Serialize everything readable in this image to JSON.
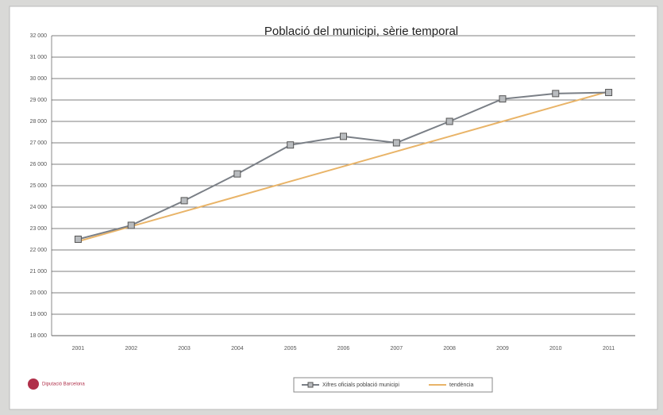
{
  "chart_data": {
    "type": "line",
    "title": "Població del municipi, sèrie temporal",
    "categories": [
      "2001",
      "2002",
      "2003",
      "2004",
      "2005",
      "2006",
      "2007",
      "2008",
      "2009",
      "2010",
      "2011"
    ],
    "series": [
      {
        "name": "Xifres oficials població municipi",
        "color": "#7a7f86",
        "marker": "square",
        "values": [
          22500,
          23150,
          24300,
          25550,
          26900,
          27300,
          27000,
          28000,
          29050,
          29300,
          29350
        ]
      },
      {
        "name": "tendència",
        "color": "#e9b468",
        "marker": "none",
        "values": [
          22400,
          23100,
          23800,
          24500,
          25200,
          25900,
          26600,
          27300,
          28000,
          28700,
          29400
        ]
      }
    ],
    "ylim": [
      18000,
      32000
    ],
    "yticks": [
      {
        "value": 18000,
        "label": "18 000"
      },
      {
        "value": 19000,
        "label": "19 000"
      },
      {
        "value": 20000,
        "label": "20 000"
      },
      {
        "value": 21000,
        "label": "21 000"
      },
      {
        "value": 22000,
        "label": "22 000"
      },
      {
        "value": 23000,
        "label": "23 000"
      },
      {
        "value": 24000,
        "label": "24 000"
      },
      {
        "value": 25000,
        "label": "25 000"
      },
      {
        "value": 26000,
        "label": "26 000"
      },
      {
        "value": 27000,
        "label": "27 000"
      },
      {
        "value": 28000,
        "label": "28 000"
      },
      {
        "value": 29000,
        "label": "29 000"
      },
      {
        "value": 30000,
        "label": "30 000"
      },
      {
        "value": 31000,
        "label": "31 000"
      },
      {
        "value": 32000,
        "label": "32 000"
      }
    ],
    "grid": true,
    "legend": "bottom",
    "logo_text": "Diputació Barcelona"
  }
}
